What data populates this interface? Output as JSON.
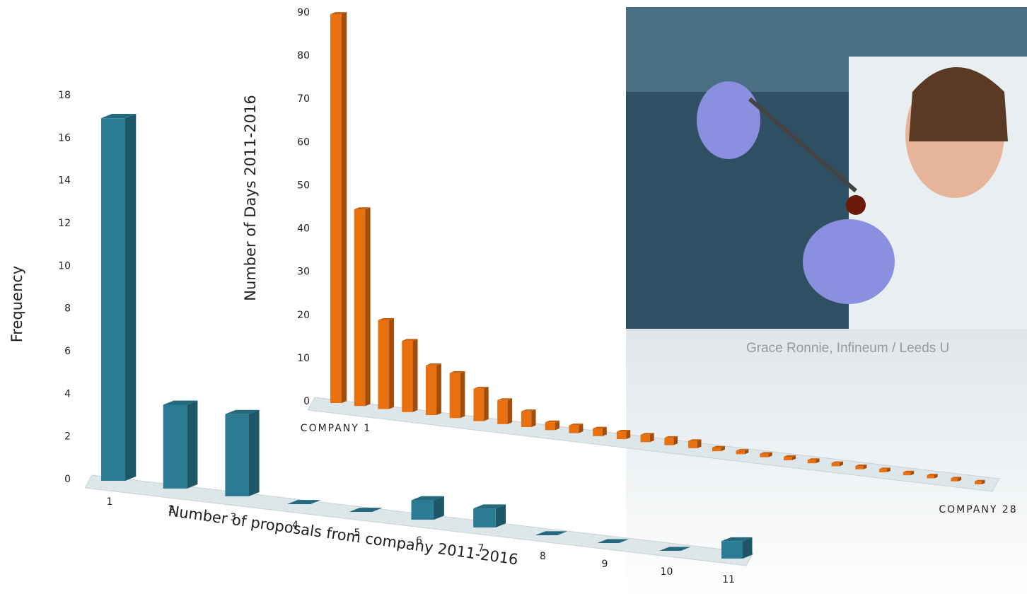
{
  "chart_data": [
    {
      "type": "bar",
      "y_label": "Frequency",
      "x_label": "Number of proposals from company 2011-2016",
      "categories": [
        "1",
        "2",
        "3",
        "4",
        "5",
        "6",
        "7",
        "8",
        "9",
        "10",
        "11"
      ],
      "values": [
        17,
        4,
        4,
        0,
        0,
        1,
        1,
        0,
        0,
        0,
        1
      ],
      "color": "#2a7b93",
      "ylim": [
        0,
        18
      ],
      "yticks": [
        0,
        2,
        4,
        6,
        8,
        10,
        12,
        14,
        16,
        18
      ]
    },
    {
      "type": "bar",
      "y_label": "Number of Days 2011-2016",
      "categories": [
        "COMPANY 1",
        null,
        null,
        null,
        null,
        null,
        null,
        null,
        null,
        null,
        null,
        null,
        null,
        null,
        null,
        null,
        null,
        null,
        null,
        null,
        null,
        null,
        null,
        null,
        null,
        null,
        null,
        "COMPANY 28"
      ],
      "values": [
        90,
        46,
        21,
        17,
        12,
        11,
        8,
        6,
        4,
        2,
        2,
        2,
        2,
        2,
        2,
        2,
        1,
        1,
        1,
        1,
        1,
        1,
        1,
        1,
        1,
        1,
        1,
        1
      ],
      "color": "#e8700e",
      "ylim": [
        0,
        90
      ],
      "yticks": [
        0,
        10,
        20,
        30,
        40,
        50,
        60,
        70,
        80,
        90
      ]
    }
  ],
  "photo": {
    "caption": "Grace Ronnie, Infineum / Leeds U"
  }
}
